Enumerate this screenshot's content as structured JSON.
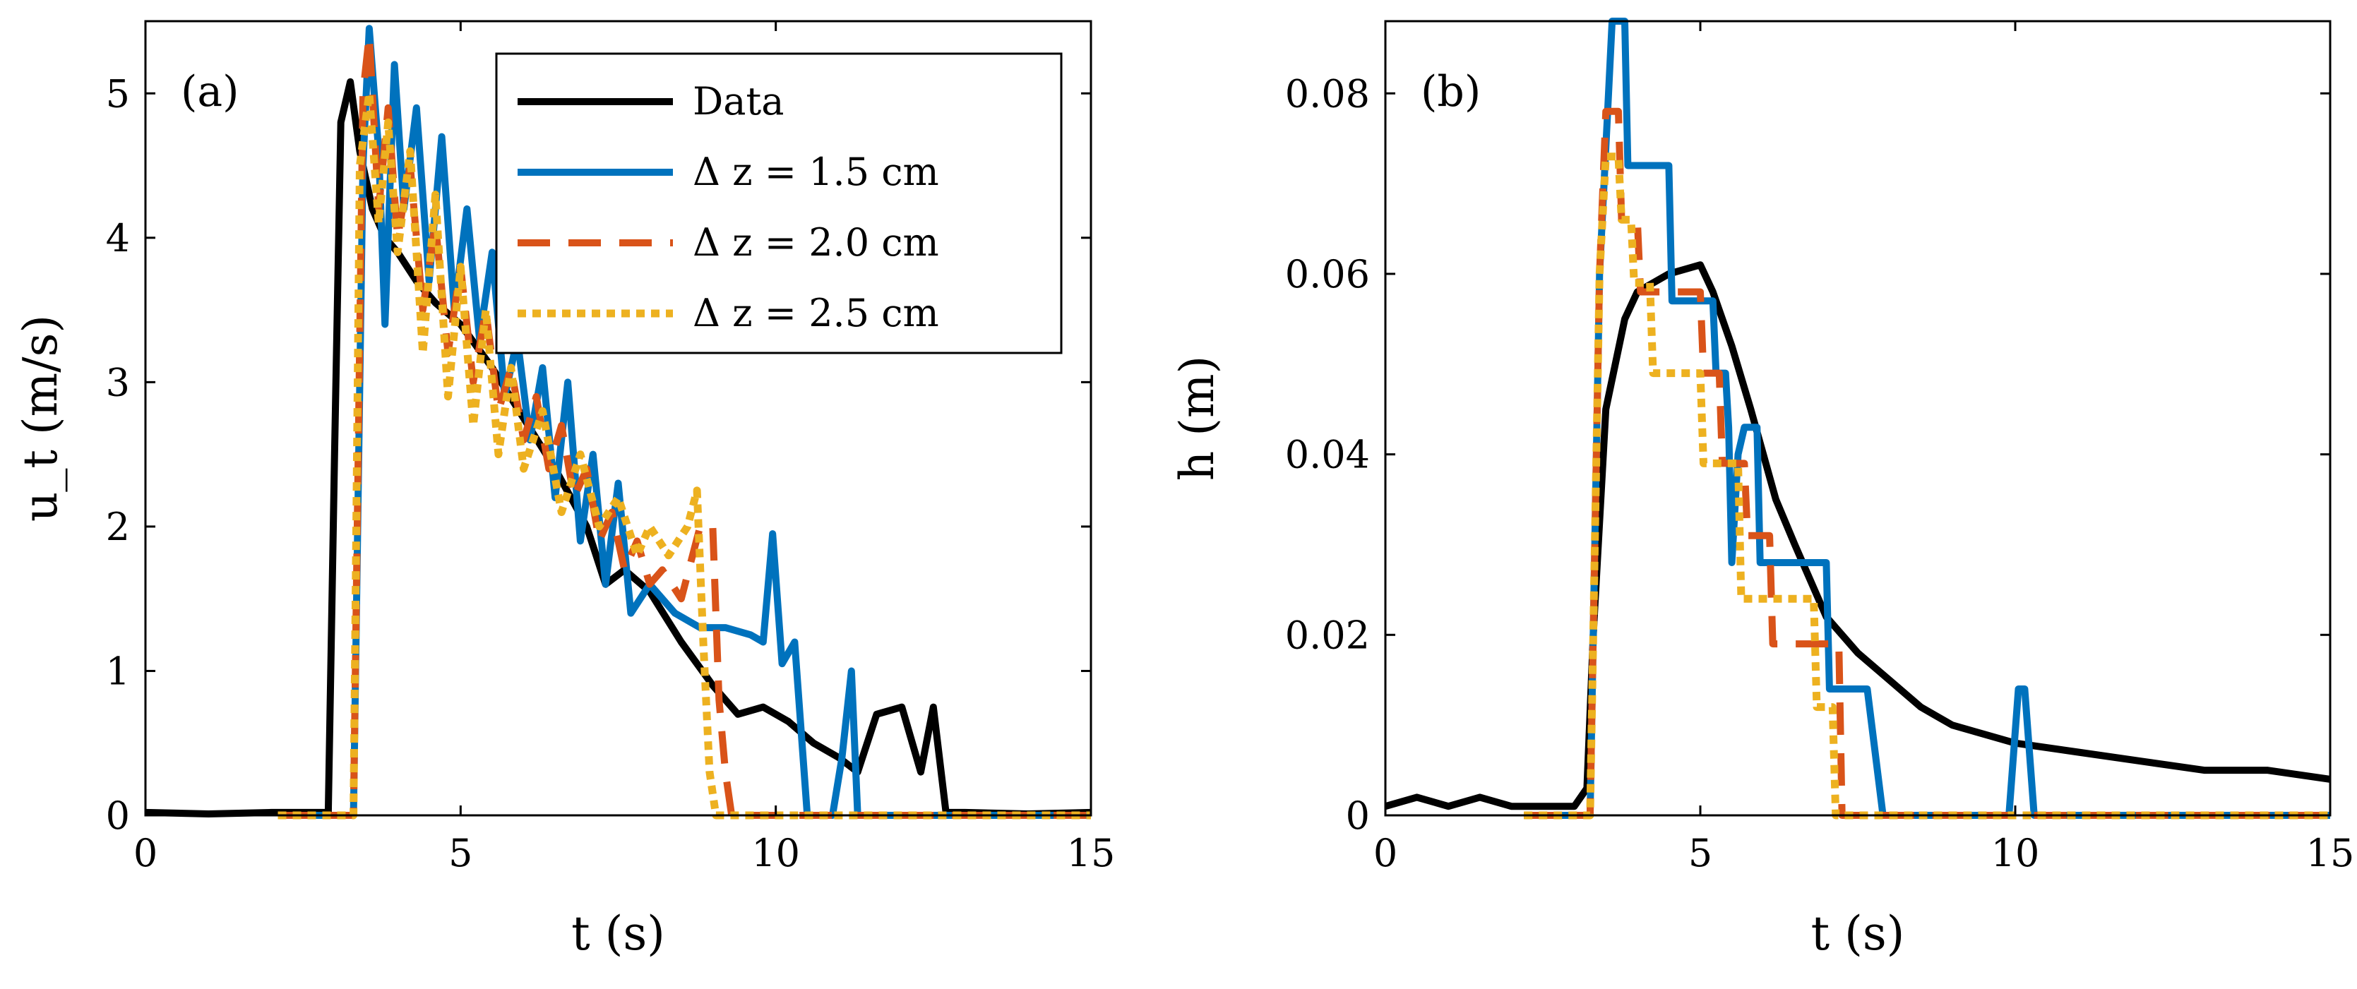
{
  "chart_data": [
    {
      "type": "line",
      "panel_label": "(a)",
      "xlabel": "t (s)",
      "ylabel": "u_t (m/s)",
      "xlim": [
        0,
        15
      ],
      "ylim": [
        0,
        5.5
      ],
      "xticks": [
        0,
        5,
        10,
        15
      ],
      "yticks": [
        0,
        1,
        2,
        3,
        4,
        5
      ],
      "xtick_labels": [
        "0",
        "5",
        "10",
        "15"
      ],
      "ytick_labels": [
        "0",
        "1",
        "2",
        "3",
        "4",
        "5"
      ],
      "grid": false,
      "legend": {
        "position": "top-right",
        "entries": [
          {
            "label": "Data",
            "color": "#000000",
            "style": "solid"
          },
          {
            "label": "Δ z = 1.5 cm",
            "color": "#0072BD",
            "style": "solid"
          },
          {
            "label": "Δ z = 2.0 cm",
            "color": "#D95319",
            "style": "dashed"
          },
          {
            "label": "Δ z = 2.5 cm",
            "color": "#EDB120",
            "style": "dotted"
          }
        ]
      },
      "series": [
        {
          "name": "Data",
          "color": "#000000",
          "style": "solid",
          "x": [
            0,
            1,
            2,
            2.9,
            3.0,
            3.1,
            3.25,
            3.4,
            3.6,
            3.8,
            4.0,
            4.3,
            4.6,
            5.0,
            5.5,
            6.0,
            6.5,
            7.0,
            7.3,
            7.6,
            8.0,
            8.5,
            9.0,
            9.4,
            9.8,
            10.2,
            10.6,
            11.0,
            11.3,
            11.6,
            12.0,
            12.3,
            12.5,
            12.7,
            13,
            14,
            15
          ],
          "y": [
            0.02,
            0.01,
            0.02,
            0.02,
            2.5,
            4.8,
            5.08,
            4.6,
            4.2,
            4.0,
            3.9,
            3.7,
            3.55,
            3.4,
            3.1,
            2.75,
            2.4,
            2.0,
            1.6,
            1.7,
            1.55,
            1.2,
            0.9,
            0.7,
            0.75,
            0.65,
            0.5,
            0.4,
            0.3,
            0.7,
            0.75,
            0.3,
            0.75,
            0.02,
            0.02,
            0.01,
            0.02
          ]
        },
        {
          "name": "Δ z = 1.5 cm",
          "color": "#0072BD",
          "style": "solid",
          "x": [
            2.1,
            3.3,
            3.45,
            3.55,
            3.7,
            3.8,
            3.95,
            4.1,
            4.3,
            4.5,
            4.7,
            4.9,
            5.1,
            5.3,
            5.5,
            5.7,
            5.9,
            6.1,
            6.3,
            6.5,
            6.7,
            6.9,
            7.1,
            7.3,
            7.5,
            7.7,
            8.0,
            8.4,
            8.8,
            9.2,
            9.6,
            9.8,
            9.95,
            10.1,
            10.3,
            10.5,
            10.55,
            10.9,
            11.05,
            11.2,
            11.3,
            11.5,
            15
          ],
          "y": [
            0,
            0,
            4.5,
            5.45,
            4.6,
            3.4,
            5.2,
            4.2,
            4.9,
            3.7,
            4.7,
            3.5,
            4.2,
            3.3,
            3.9,
            2.9,
            3.3,
            2.6,
            3.1,
            2.2,
            3.0,
            1.9,
            2.5,
            1.6,
            2.3,
            1.4,
            1.6,
            1.4,
            1.3,
            1.3,
            1.25,
            1.2,
            1.95,
            1.05,
            1.2,
            0,
            0,
            0,
            0.4,
            1.0,
            0,
            0,
            0
          ]
        },
        {
          "name": "Δ z = 2.0 cm",
          "color": "#D95319",
          "style": "dashed",
          "x": [
            2.1,
            3.3,
            3.45,
            3.55,
            3.7,
            3.85,
            4.0,
            4.2,
            4.4,
            4.6,
            4.8,
            5.0,
            5.2,
            5.4,
            5.6,
            5.8,
            6.0,
            6.2,
            6.4,
            6.6,
            6.8,
            7.0,
            7.2,
            7.4,
            7.6,
            7.8,
            8.0,
            8.2,
            8.5,
            8.8,
            9.0,
            9.1,
            9.2,
            9.3,
            15
          ],
          "y": [
            0,
            0,
            5.0,
            5.4,
            4.2,
            4.9,
            4.0,
            4.5,
            3.5,
            4.1,
            3.2,
            3.8,
            3.0,
            3.5,
            2.8,
            3.1,
            2.6,
            2.9,
            2.4,
            2.7,
            2.2,
            2.4,
            1.9,
            2.1,
            1.7,
            1.9,
            1.6,
            1.7,
            1.5,
            2.0,
            2.0,
            0.8,
            0.3,
            0,
            0
          ]
        },
        {
          "name": "Δ z = 2.5 cm",
          "color": "#EDB120",
          "style": "dotted",
          "x": [
            2.1,
            3.3,
            3.4,
            3.55,
            3.7,
            3.85,
            4.0,
            4.2,
            4.4,
            4.6,
            4.8,
            5.0,
            5.2,
            5.4,
            5.6,
            5.8,
            6.0,
            6.3,
            6.6,
            6.9,
            7.2,
            7.5,
            7.8,
            8.0,
            8.3,
            8.6,
            8.75,
            8.85,
            8.95,
            9.05,
            15
          ],
          "y": [
            0,
            0,
            4.5,
            5.0,
            4.1,
            4.8,
            3.9,
            4.6,
            3.2,
            4.3,
            2.9,
            3.8,
            2.7,
            3.5,
            2.5,
            3.1,
            2.4,
            2.8,
            2.1,
            2.5,
            2.0,
            2.2,
            1.8,
            2.0,
            1.8,
            2.0,
            2.25,
            1.2,
            0.3,
            0,
            0
          ]
        }
      ]
    },
    {
      "type": "line",
      "panel_label": "(b)",
      "xlabel": "t (s)",
      "ylabel": "h (m)",
      "xlim": [
        0,
        15
      ],
      "ylim": [
        0,
        0.088
      ],
      "xticks": [
        0,
        5,
        10,
        15
      ],
      "yticks": [
        0,
        0.02,
        0.04,
        0.06,
        0.08
      ],
      "xtick_labels": [
        "0",
        "5",
        "10",
        "15"
      ],
      "ytick_labels": [
        "0",
        "0.02",
        "0.04",
        "0.06",
        "0.08"
      ],
      "grid": false,
      "series": [
        {
          "name": "Data",
          "color": "#000000",
          "style": "solid",
          "x": [
            0,
            0.5,
            1.0,
            1.5,
            2.0,
            2.5,
            3.0,
            3.2,
            3.3,
            3.5,
            3.8,
            4.0,
            4.5,
            5.0,
            5.2,
            5.5,
            5.8,
            6.0,
            6.2,
            6.5,
            7.0,
            7.5,
            8.0,
            8.5,
            9.0,
            9.5,
            10.0,
            11.0,
            12.0,
            13.0,
            14.0,
            15.0
          ],
          "y": [
            0.001,
            0.002,
            0.001,
            0.002,
            0.001,
            0.001,
            0.001,
            0.003,
            0.02,
            0.045,
            0.055,
            0.058,
            0.06,
            0.061,
            0.058,
            0.052,
            0.045,
            0.04,
            0.035,
            0.03,
            0.022,
            0.018,
            0.015,
            0.012,
            0.01,
            0.009,
            0.008,
            0.007,
            0.006,
            0.005,
            0.005,
            0.004
          ]
        },
        {
          "name": "Δ z = 1.5 cm",
          "color": "#0072BD",
          "style": "solid",
          "x": [
            2.2,
            3.25,
            3.4,
            3.6,
            3.65,
            3.8,
            3.85,
            4.2,
            4.25,
            4.5,
            4.55,
            5.0,
            5.05,
            5.2,
            5.25,
            5.4,
            5.45,
            5.5,
            5.6,
            5.7,
            5.75,
            5.9,
            5.95,
            6.5,
            6.55,
            7.0,
            7.05,
            7.6,
            7.65,
            7.9,
            9.9,
            10.05,
            10.15,
            10.3,
            15
          ],
          "y": [
            0,
            0,
            0.06,
            0.088,
            0.088,
            0.088,
            0.072,
            0.072,
            0.072,
            0.072,
            0.057,
            0.057,
            0.057,
            0.057,
            0.049,
            0.049,
            0.043,
            0.028,
            0.04,
            0.043,
            0.043,
            0.043,
            0.028,
            0.028,
            0.028,
            0.028,
            0.014,
            0.014,
            0.014,
            0,
            0,
            0.014,
            0.014,
            0,
            0
          ]
        },
        {
          "name": "Δ z = 2.0 cm",
          "color": "#D95319",
          "style": "dashed",
          "x": [
            2.2,
            3.25,
            3.4,
            3.5,
            3.6,
            3.7,
            3.75,
            4.0,
            4.05,
            4.6,
            4.65,
            5.0,
            5.05,
            5.3,
            5.35,
            5.7,
            5.75,
            6.1,
            6.15,
            6.6,
            6.65,
            7.0,
            7.05,
            7.2,
            7.25,
            15
          ],
          "y": [
            0,
            0,
            0.06,
            0.078,
            0.078,
            0.078,
            0.066,
            0.066,
            0.058,
            0.058,
            0.058,
            0.058,
            0.049,
            0.049,
            0.039,
            0.039,
            0.031,
            0.031,
            0.019,
            0.019,
            0.019,
            0.019,
            0.019,
            0.019,
            0,
            0
          ]
        },
        {
          "name": "Δ z = 2.5 cm",
          "color": "#EDB120",
          "style": "dotted",
          "x": [
            2.2,
            3.25,
            3.4,
            3.5,
            3.6,
            3.7,
            3.75,
            3.9,
            3.95,
            4.2,
            4.25,
            4.6,
            4.65,
            5.0,
            5.05,
            5.6,
            5.65,
            6.0,
            6.05,
            6.8,
            6.85,
            7.1,
            7.15,
            15
          ],
          "y": [
            0,
            0,
            0.06,
            0.073,
            0.073,
            0.073,
            0.066,
            0.066,
            0.059,
            0.059,
            0.049,
            0.049,
            0.049,
            0.049,
            0.039,
            0.039,
            0.024,
            0.024,
            0.024,
            0.024,
            0.012,
            0.012,
            0,
            0
          ]
        }
      ]
    }
  ]
}
